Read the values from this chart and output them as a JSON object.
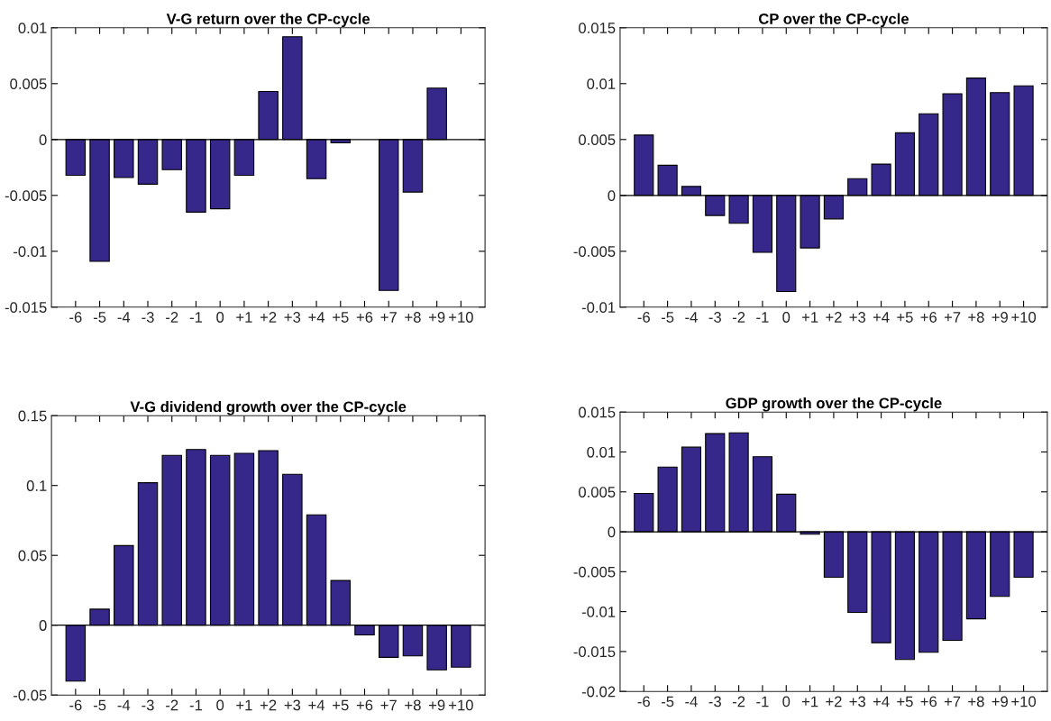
{
  "chart_data": [
    {
      "type": "bar",
      "title": "V-G return over the CP-cycle",
      "categories": [
        "-6",
        "-5",
        "-4",
        "-3",
        "-2",
        "-1",
        "0",
        "+1",
        "+2",
        "+3",
        "+4",
        "+5",
        "+6",
        "+7",
        "+8",
        "+9",
        "+10"
      ],
      "values": [
        -0.0032,
        -0.0109,
        -0.0034,
        -0.004,
        -0.0027,
        -0.0065,
        -0.0062,
        -0.0032,
        0.0043,
        0.0092,
        -0.0035,
        -0.0003,
        0,
        -0.0135,
        -0.0047,
        0.0046,
        0
      ],
      "color": "#35288a",
      "ylim": [
        -0.015,
        0.01
      ],
      "yticks": [
        -0.015,
        -0.01,
        -0.005,
        0,
        0.005,
        0.01
      ],
      "ref_lines": [
        {
          "axis": "y",
          "value": 0
        }
      ],
      "grid": false
    },
    {
      "type": "bar",
      "title": "CP over the CP-cycle",
      "categories": [
        "-6",
        "-5",
        "-4",
        "-3",
        "-2",
        "-1",
        "0",
        "+1",
        "+2",
        "+3",
        "+4",
        "+5",
        "+6",
        "+7",
        "+8",
        "+9",
        "+10"
      ],
      "values": [
        0.0054,
        0.0027,
        0.0008,
        -0.0018,
        -0.0025,
        -0.0051,
        -0.0086,
        -0.0047,
        -0.0021,
        0.0015,
        0.0028,
        0.0056,
        0.0073,
        0.0091,
        0.0105,
        0.0092,
        0.0098
      ],
      "color": "#35288a",
      "ylim": [
        -0.01,
        0.015
      ],
      "yticks": [
        -0.01,
        -0.005,
        0,
        0.005,
        0.01,
        0.015
      ],
      "ref_lines": [
        {
          "axis": "y",
          "value": 0
        }
      ],
      "grid": false
    },
    {
      "type": "bar",
      "title": "V-G dividend growth over the CP-cycle",
      "categories": [
        "-6",
        "-5",
        "-4",
        "-3",
        "-2",
        "-1",
        "0",
        "+1",
        "+2",
        "+3",
        "+4",
        "+5",
        "+6",
        "+7",
        "+8",
        "+9",
        "+10"
      ],
      "values": [
        -0.04,
        0.0115,
        0.057,
        0.102,
        0.1216,
        0.1258,
        0.1216,
        0.123,
        0.125,
        0.108,
        0.079,
        0.032,
        -0.007,
        -0.023,
        -0.022,
        -0.032,
        -0.03
      ],
      "color": "#35288a",
      "ylim": [
        -0.05,
        0.15
      ],
      "yticks": [
        -0.05,
        0,
        0.05,
        0.1,
        0.15
      ],
      "ref_lines": [
        {
          "axis": "y",
          "value": 0
        }
      ],
      "grid": false
    },
    {
      "type": "bar",
      "title": "GDP growth over the CP-cycle",
      "categories": [
        "-6",
        "-5",
        "-4",
        "-3",
        "-2",
        "-1",
        "0",
        "+1",
        "+2",
        "+3",
        "+4",
        "+5",
        "+6",
        "+7",
        "+8",
        "+9",
        "+10"
      ],
      "values": [
        0.0048,
        0.0081,
        0.0106,
        0.0123,
        0.0124,
        0.0094,
        0.0047,
        -0.0003,
        -0.0057,
        -0.0101,
        -0.0139,
        -0.016,
        -0.0151,
        -0.0136,
        -0.0109,
        -0.0081,
        -0.0057
      ],
      "color": "#35288a",
      "ylim": [
        -0.02,
        0.015
      ],
      "yticks": [
        -0.02,
        -0.015,
        -0.01,
        -0.005,
        0,
        0.005,
        0.01,
        0.015
      ],
      "ref_lines": [
        {
          "axis": "y",
          "value": 0
        }
      ],
      "grid": false
    }
  ]
}
